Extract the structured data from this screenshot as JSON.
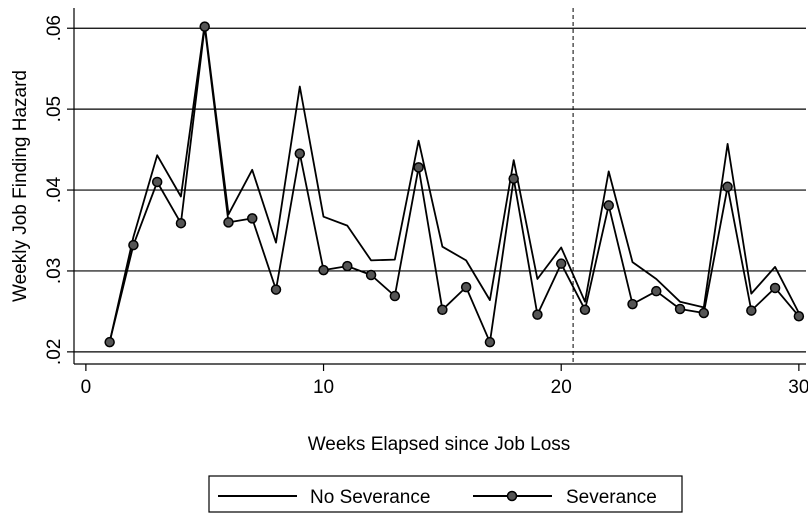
{
  "chart_data": {
    "type": "line",
    "xlabel": "Weeks Elapsed since Job Loss",
    "ylabel": "Weekly Job Finding Hazard",
    "xlim": [
      -0.5,
      30.3
    ],
    "ylim": [
      0.0185,
      0.0625
    ],
    "x_ticks": [
      0,
      10,
      20,
      30
    ],
    "x_tick_labels": [
      "0",
      "10",
      "20",
      "30"
    ],
    "y_ticks": [
      0.02,
      0.03,
      0.04,
      0.05,
      0.06
    ],
    "y_tick_labels": [
      ".02",
      ".03",
      ".04",
      ".05",
      ".06"
    ],
    "grid": "horizontal",
    "reference_line": {
      "x": 20.5,
      "style": "dashed"
    },
    "legend_position": "bottom",
    "x": [
      1,
      2,
      3,
      4,
      5,
      6,
      7,
      8,
      9,
      10,
      11,
      12,
      13,
      14,
      15,
      16,
      17,
      18,
      19,
      20,
      21,
      22,
      23,
      24,
      25,
      26,
      27,
      28,
      29,
      30
    ],
    "series": [
      {
        "name": "No Severance",
        "marker": "none",
        "color": "#000000",
        "values": [
          0.0212,
          0.0342,
          0.0443,
          0.0392,
          0.0605,
          0.037,
          0.0425,
          0.0335,
          0.0528,
          0.0367,
          0.0356,
          0.0313,
          0.0314,
          0.0461,
          0.033,
          0.0313,
          0.0264,
          0.0437,
          0.029,
          0.0329,
          0.0262,
          0.0423,
          0.0311,
          0.029,
          0.0262,
          0.0255,
          0.0457,
          0.0272,
          0.0305,
          0.0248
        ]
      },
      {
        "name": "Severance",
        "marker": "circle",
        "color": "#000000",
        "marker_fill": "#555555",
        "values": [
          0.0212,
          0.0332,
          0.041,
          0.0359,
          0.0602,
          0.036,
          0.0365,
          0.0277,
          0.0445,
          0.0301,
          0.0306,
          0.0295,
          0.0269,
          0.0428,
          0.0252,
          0.028,
          0.0212,
          0.0414,
          0.0246,
          0.0309,
          0.0252,
          0.0381,
          0.0259,
          0.0275,
          0.0253,
          0.0248,
          0.0404,
          0.0251,
          0.0279,
          0.0244
        ]
      }
    ]
  }
}
